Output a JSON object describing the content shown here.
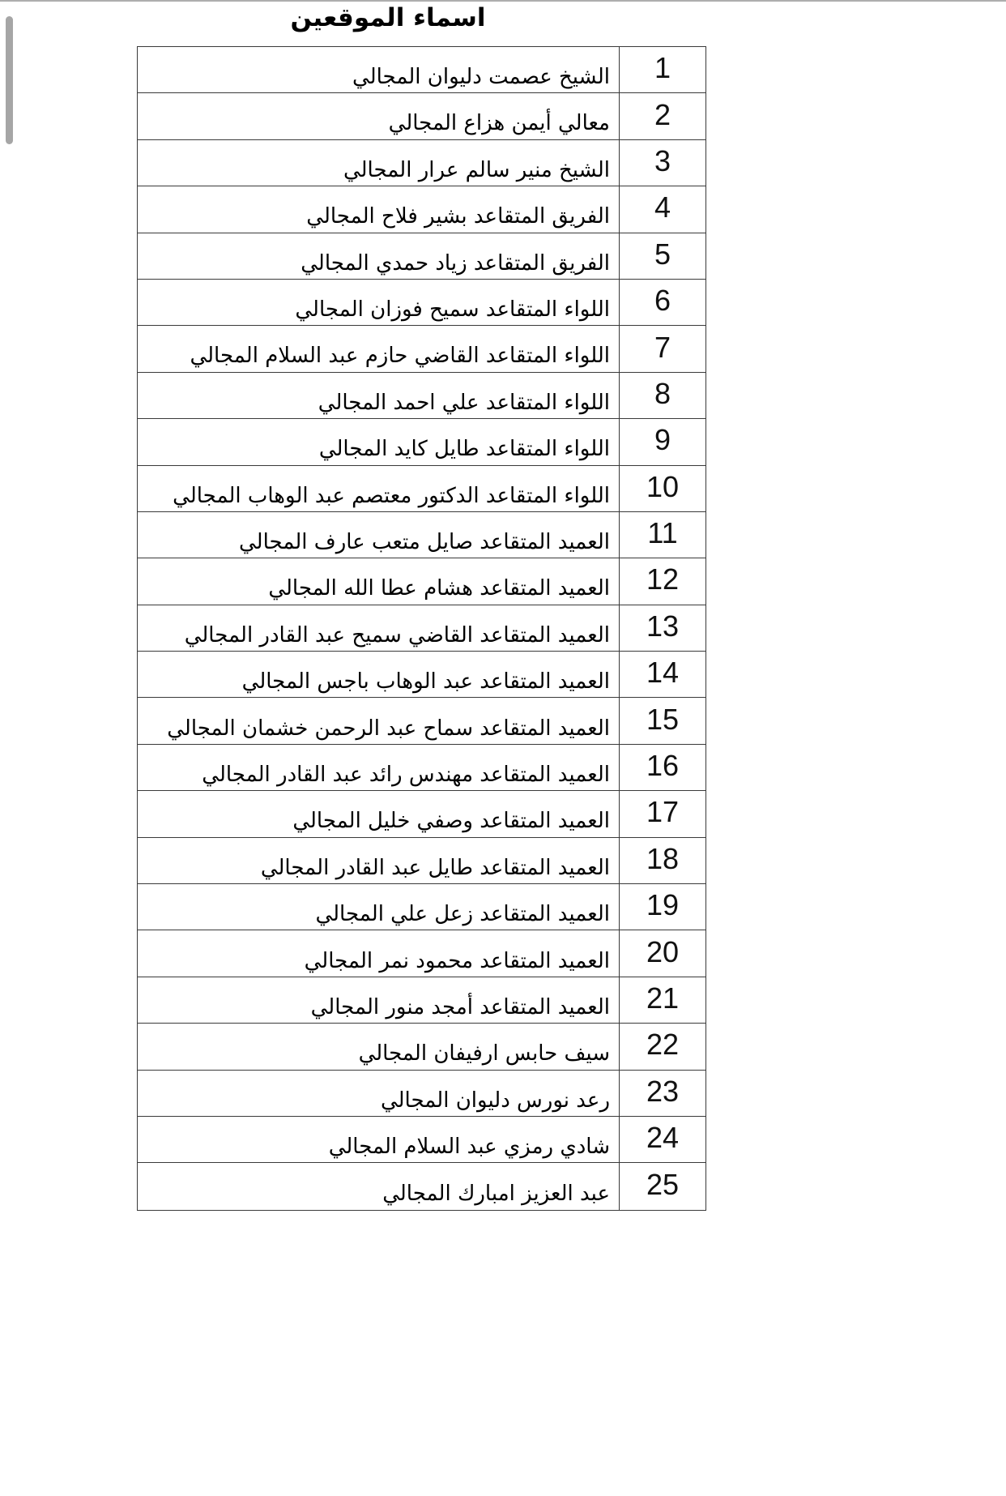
{
  "page": {
    "title": "اسماء الموقعين"
  },
  "colors": {
    "border": "#3a3a3a",
    "top_hairline": "#aeaeae",
    "scrollbar_thumb": "#a6a6a6",
    "text": "#000000"
  },
  "table": {
    "rows": [
      {
        "number": "1",
        "name": "الشيخ عصمت دليوان المجالي"
      },
      {
        "number": "2",
        "name": "معالي أيمن هزاع المجالي"
      },
      {
        "number": "3",
        "name": "الشيخ منير سالم عرار المجالي"
      },
      {
        "number": "4",
        "name": "الفريق المتقاعد بشير فلاح المجالي"
      },
      {
        "number": "5",
        "name": "الفريق المتقاعد زياد حمدي المجالي"
      },
      {
        "number": "6",
        "name": "اللواء المتقاعد سميح فوزان المجالي"
      },
      {
        "number": "7",
        "name": "اللواء المتقاعد القاضي حازم عبد السلام المجالي"
      },
      {
        "number": "8",
        "name": "اللواء المتقاعد علي احمد المجالي"
      },
      {
        "number": "9",
        "name": "اللواء المتقاعد طايل كايد المجالي"
      },
      {
        "number": "10",
        "name": "اللواء المتقاعد الدكتور معتصم عبد الوهاب المجالي"
      },
      {
        "number": "11",
        "name": "العميد المتقاعد صايل متعب عارف المجالي"
      },
      {
        "number": "12",
        "name": "العميد المتقاعد هشام عطا الله المجالي"
      },
      {
        "number": "13",
        "name": "العميد المتقاعد القاضي سميح عبد القادر المجالي"
      },
      {
        "number": "14",
        "name": "العميد المتقاعد عبد الوهاب باجس المجالي"
      },
      {
        "number": "15",
        "name": "العميد المتقاعد سماح عبد الرحمن خشمان المجالي"
      },
      {
        "number": "16",
        "name": "العميد المتقاعد مهندس رائد عبد القادر المجالي"
      },
      {
        "number": "17",
        "name": "العميد المتقاعد وصفي خليل المجالي"
      },
      {
        "number": "18",
        "name": "العميد المتقاعد طايل عبد القادر المجالي"
      },
      {
        "number": "19",
        "name": "العميد المتقاعد زعل علي المجالي"
      },
      {
        "number": "20",
        "name": "العميد المتقاعد محمود نمر المجالي"
      },
      {
        "number": "21",
        "name": "العميد المتقاعد أمجد منور المجالي"
      },
      {
        "number": "22",
        "name": "سيف حابس ارفيفان المجالي"
      },
      {
        "number": "23",
        "name": "رعد نورس دليوان المجالي"
      },
      {
        "number": "24",
        "name": "شادي رمزي عبد السلام المجالي"
      },
      {
        "number": "25",
        "name": "عبد العزيز امبارك المجالي"
      }
    ]
  }
}
